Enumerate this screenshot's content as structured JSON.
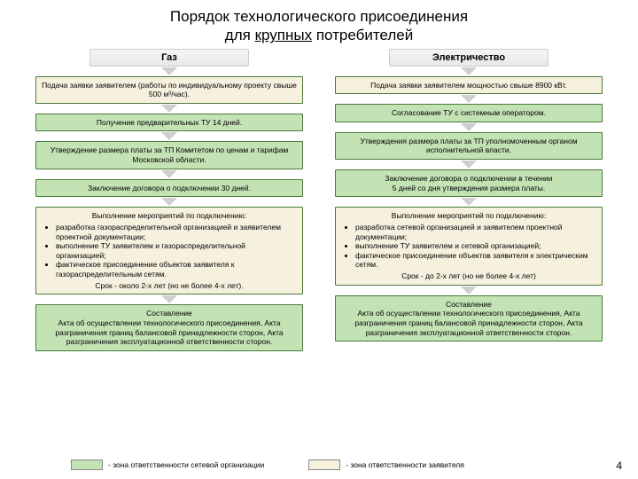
{
  "title_line1": "Порядок технологического присоединения",
  "title_line2_a": "для ",
  "title_line2_u": "крупных",
  "title_line2_b": " потребителей",
  "colors": {
    "green_fill": "#c4e3b5",
    "beige_fill": "#f6f0de",
    "box_border": "#4a7a3a",
    "arrow": "#cfcfcf",
    "header_bg_top": "#f5f5f5",
    "header_bg_bottom": "#e8e8e8",
    "header_border": "#cccccc",
    "page_bg": "#ffffff"
  },
  "fonts": {
    "title_size_pt": 13,
    "header_size_pt": 8,
    "step_size_pt": 6.5,
    "legend_size_pt": 6.5
  },
  "gas": {
    "header": "Газ",
    "s1": "Подача заявки заявителем (работы по индивидуальному проекту свыше 500 м³/час).",
    "s2": "Получение предварительных ТУ 14 дней.",
    "s3": "Утверждение размера платы за ТП Комитетом по ценам и тарифам Московской области.",
    "s4": "Заключение договора о подключении 30 дней.",
    "s5_lead": "Выполнение мероприятий по подключению:",
    "s5_b1": "разработка газораспределительной организацией и заявителем проектной документации;",
    "s5_b2": "выполнение ТУ заявителем и газораспределительной организацией;",
    "s5_b3": "фактическое присоединение объектов заявителя к газораспределительным сетям.",
    "s5_tail": "Срок  - около 2-х лет (но не более 4-х лет).",
    "s6": "Составление\nАкта об осуществлении технологического присоединения, Акта разграничения границ балансовой принадлежности сторон, Акта разграничения эксплуатационной ответственности сторон."
  },
  "elec": {
    "header": "Электричество",
    "s1": "Подача заявки заявителем мощностью свыше 8900 кВт.",
    "s2": "Согласование ТУ с системным оператором.",
    "s3": "Утверждения размера платы за ТП уполномоченным органом исполнительной власти.",
    "s4": "Заключение договора о подключении  в течении\n5 дней со дня утверждения размера платы.",
    "s5_lead": "Выполнение мероприятий по подключению:",
    "s5_b1": "разработка сетевой организацией и заявителем проектной документации;",
    "s5_b2": "выполнение ТУ заявителем и сетевой организацией;",
    "s5_b3": "фактическое присоединение объектов заявителя к электрическим сетям.",
    "s5_tail": "Срок  - до 2-х лет (но не более 4-х лет)",
    "s6": "Составление\nАкта об осуществлении технологического присоединения, Акта разграничения границ балансовой принадлежности сторон, Акта разграничения эксплуатационной ответственности сторон."
  },
  "legend": {
    "net": "- зона ответственности  сетевой организации",
    "app": "- зона ответственности заявителя"
  },
  "page_number": "4"
}
